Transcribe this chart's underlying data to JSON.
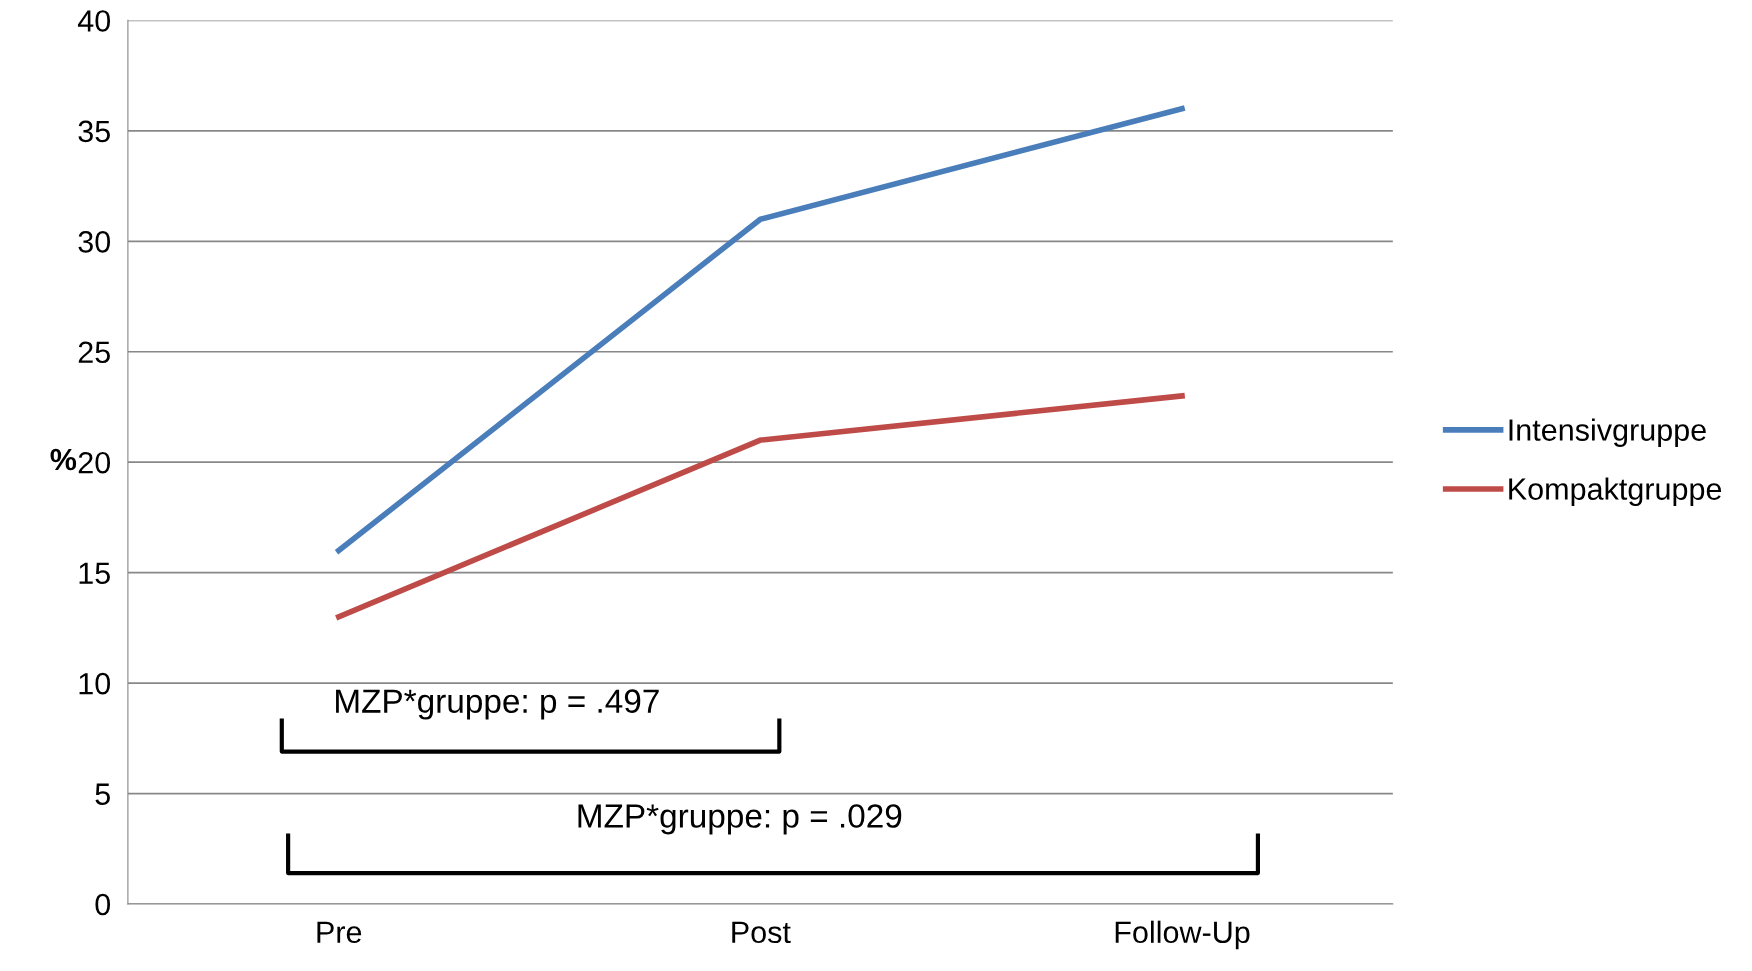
{
  "chart_data": {
    "type": "line",
    "ylabel": "%",
    "categories": [
      "Pre",
      "Post",
      "Follow-Up"
    ],
    "series": [
      {
        "name": "Intensivgruppe",
        "color": "#4a7ebb",
        "values": [
          16,
          31,
          36
        ]
      },
      {
        "name": "Kompaktgruppe",
        "color": "#be4b48",
        "values": [
          13,
          21,
          23
        ]
      }
    ],
    "ylim": [
      0,
      40
    ],
    "yticks": [
      0,
      5,
      10,
      15,
      20,
      25,
      30,
      35,
      40
    ],
    "grid": "y",
    "legend": "right",
    "marker": "none",
    "line_style": "solid",
    "annotations": [
      "MZP*gruppe: p = .497",
      "MZP*gruppe: p = .029"
    ]
  }
}
